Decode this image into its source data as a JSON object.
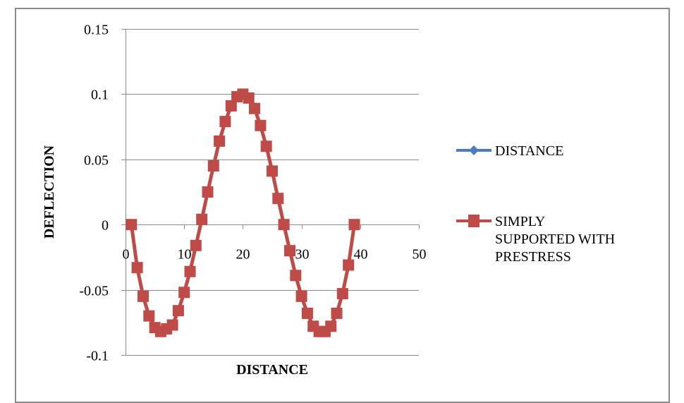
{
  "chart_data": {
    "type": "line",
    "title": "",
    "xlabel": "DISTANCE",
    "ylabel": "DEFLECTION",
    "xlim": [
      0,
      50
    ],
    "ylim": [
      -0.1,
      0.15
    ],
    "x_ticks": [
      "0",
      "10",
      "20",
      "30",
      "40",
      "50"
    ],
    "x_tick_values": [
      0,
      10,
      20,
      30,
      40,
      50
    ],
    "y_ticks": [
      "0.15",
      "0.1",
      "0.05",
      "0",
      "-0.05",
      "-0.1"
    ],
    "y_tick_values": [
      0.15,
      0.1,
      0.05,
      0,
      -0.05,
      -0.1
    ],
    "grid": {
      "horizontal": true,
      "vertical": false
    },
    "legend_position": "right",
    "x": [
      1,
      2,
      3,
      4,
      5,
      6,
      7,
      8,
      9,
      10,
      11,
      12,
      13,
      14,
      15,
      16,
      17,
      18,
      19,
      20,
      21,
      22,
      23,
      24,
      25,
      26,
      27,
      28,
      29,
      30,
      31,
      32,
      33,
      34,
      35,
      36,
      37,
      38,
      39
    ],
    "series": [
      {
        "name": "DISTANCE",
        "color": "#4A7EBB",
        "marker": "diamond",
        "values": []
      },
      {
        "name": "SIMPLY SUPPORTED WITH PRESTRESS",
        "color": "#BE4B48",
        "marker": "square",
        "values": [
          0,
          -0.033,
          -0.055,
          -0.07,
          -0.079,
          -0.082,
          -0.08,
          -0.077,
          -0.066,
          -0.052,
          -0.036,
          -0.016,
          0.004,
          0.025,
          0.045,
          0.064,
          0.079,
          0.091,
          0.098,
          0.1,
          0.097,
          0.089,
          0.076,
          0.06,
          0.041,
          0.02,
          0.0,
          -0.02,
          -0.039,
          -0.055,
          -0.068,
          -0.078,
          -0.082,
          -0.082,
          -0.078,
          -0.068,
          -0.053,
          -0.031,
          0
        ]
      }
    ]
  },
  "legend": {
    "items": [
      {
        "label_lines": [
          "DISTANCE"
        ]
      },
      {
        "label_lines": [
          "SIMPLY",
          "SUPPORTED WITH",
          "PRESTRESS"
        ]
      }
    ]
  },
  "colors": {
    "frame_border": "#8C8C8C",
    "gridline": "#8C8C8C",
    "axis": "#8C8C8C"
  }
}
